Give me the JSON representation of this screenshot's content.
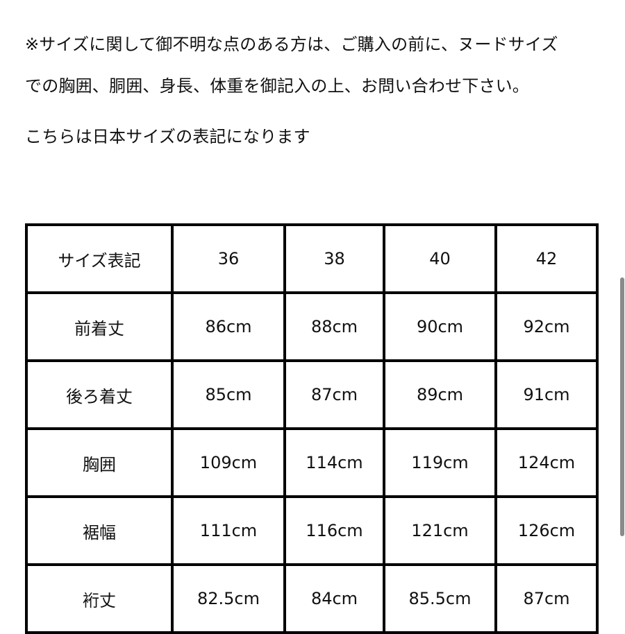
{
  "notes": [
    "※サイズに関して御不明な点のある方は、ご購入の前に、ヌードサイズ",
    "での胸囲、胴囲、身長、体重を御記入の上、お問い合わせ下さい。",
    "こちらは日本サイズの表記になります"
  ],
  "table": {
    "rows": [
      [
        "サイズ表記",
        "36",
        "38",
        "40",
        "42"
      ],
      [
        "前着丈",
        "86cm",
        "88cm",
        "90cm",
        "92cm"
      ],
      [
        "後ろ着丈",
        "85cm",
        "87cm",
        "89cm",
        "91cm"
      ],
      [
        "胸囲",
        "109cm",
        "114cm",
        "119cm",
        "124cm"
      ],
      [
        "裾幅",
        "111cm",
        "116cm",
        "121cm",
        "126cm"
      ],
      [
        "裄丈",
        "82.5cm",
        "84cm",
        "85.5cm",
        "87cm"
      ]
    ]
  }
}
